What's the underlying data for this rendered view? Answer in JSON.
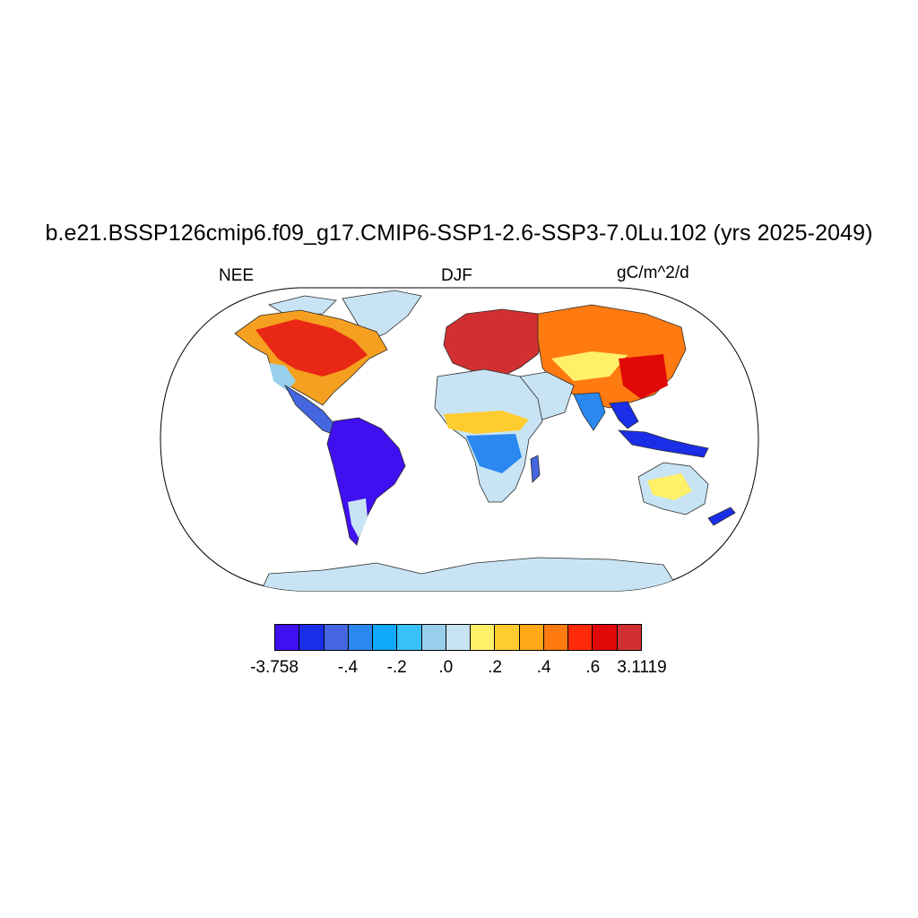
{
  "header": {
    "title": "b.e21.BSSP126cmip6.f09_g17.CMIP6-SSP1-2.6-SSP3-7.0Lu.102 (yrs 2025-2049)",
    "variable": "NEE",
    "season": "DJF",
    "units": "gC/m^2/d"
  },
  "map": {
    "projection": "Robinson",
    "ocean_color": "#ffffff",
    "outline_color": "#000000",
    "land_base_color": "#c8e4f4"
  },
  "colorbar": {
    "colors": [
      "#4010f0",
      "#1a2ee8",
      "#4466e0",
      "#2a88f0",
      "#10a8f8",
      "#38c0f8",
      "#98d0ec",
      "#c8e4f4",
      "#fff06a",
      "#ffcc30",
      "#ffa818",
      "#ff7a10",
      "#ff2a0a",
      "#e00808",
      "#d23030"
    ],
    "labels": [
      {
        "text": "-3.758",
        "boundary": 0
      },
      {
        "text": "-.4",
        "boundary": 3
      },
      {
        "text": "-.2",
        "boundary": 5
      },
      {
        "text": ".0",
        "boundary": 7
      },
      {
        "text": ".2",
        "boundary": 9
      },
      {
        "text": ".4",
        "boundary": 11
      },
      {
        "text": ".6",
        "boundary": 13
      },
      {
        "text": "3.1119",
        "boundary": 15
      }
    ]
  }
}
